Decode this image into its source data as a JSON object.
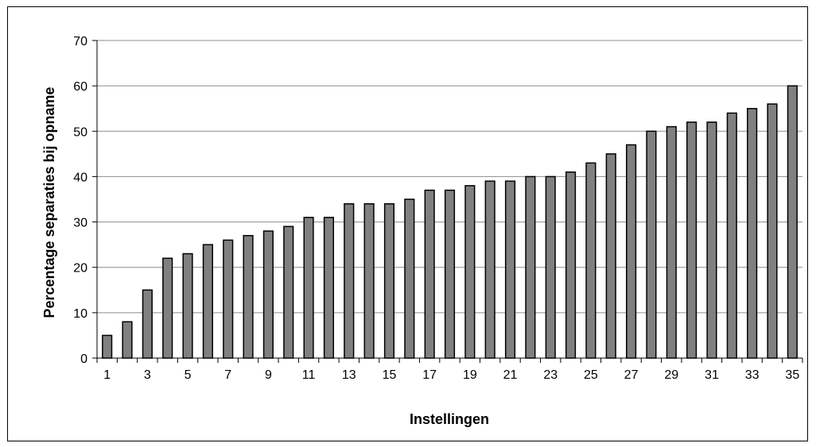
{
  "chart_data": {
    "type": "bar",
    "xlabel": "Instellingen",
    "ylabel": "Percentage separaties bij opname",
    "ylim": [
      0,
      70
    ],
    "yticks": [
      0,
      10,
      20,
      30,
      40,
      50,
      60,
      70
    ],
    "categories": [
      "1",
      "2",
      "3",
      "4",
      "5",
      "6",
      "7",
      "8",
      "9",
      "10",
      "11",
      "12",
      "13",
      "14",
      "15",
      "16",
      "17",
      "18",
      "19",
      "20",
      "21",
      "22",
      "23",
      "24",
      "25",
      "26",
      "27",
      "28",
      "29",
      "30",
      "31",
      "32",
      "33",
      "34",
      "35"
    ],
    "x_tick_labels": [
      "1",
      "3",
      "5",
      "7",
      "9",
      "11",
      "13",
      "15",
      "17",
      "19",
      "21",
      "23",
      "25",
      "27",
      "29",
      "31",
      "33",
      "35"
    ],
    "values": [
      5,
      8,
      15,
      22,
      23,
      25,
      26,
      27,
      28,
      29,
      31,
      31,
      34,
      34,
      34,
      35,
      37,
      37,
      38,
      39,
      39,
      40,
      40,
      41,
      43,
      45,
      47,
      50,
      51,
      52,
      52,
      54,
      55,
      56,
      60
    ],
    "bar_color": "#808080",
    "bar_edge_color": "#000000",
    "gridlines": true,
    "legend": false
  }
}
